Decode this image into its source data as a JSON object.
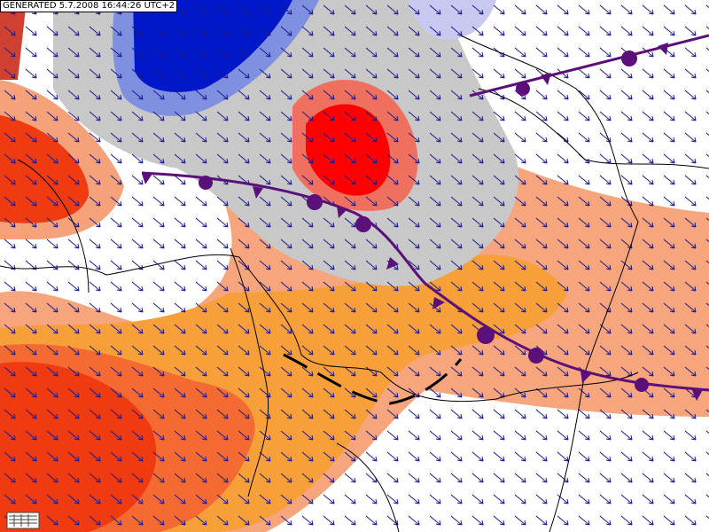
{
  "header": {
    "label": "GENERATED 5.7.2008 16:44:26 UTC+2"
  }
}
